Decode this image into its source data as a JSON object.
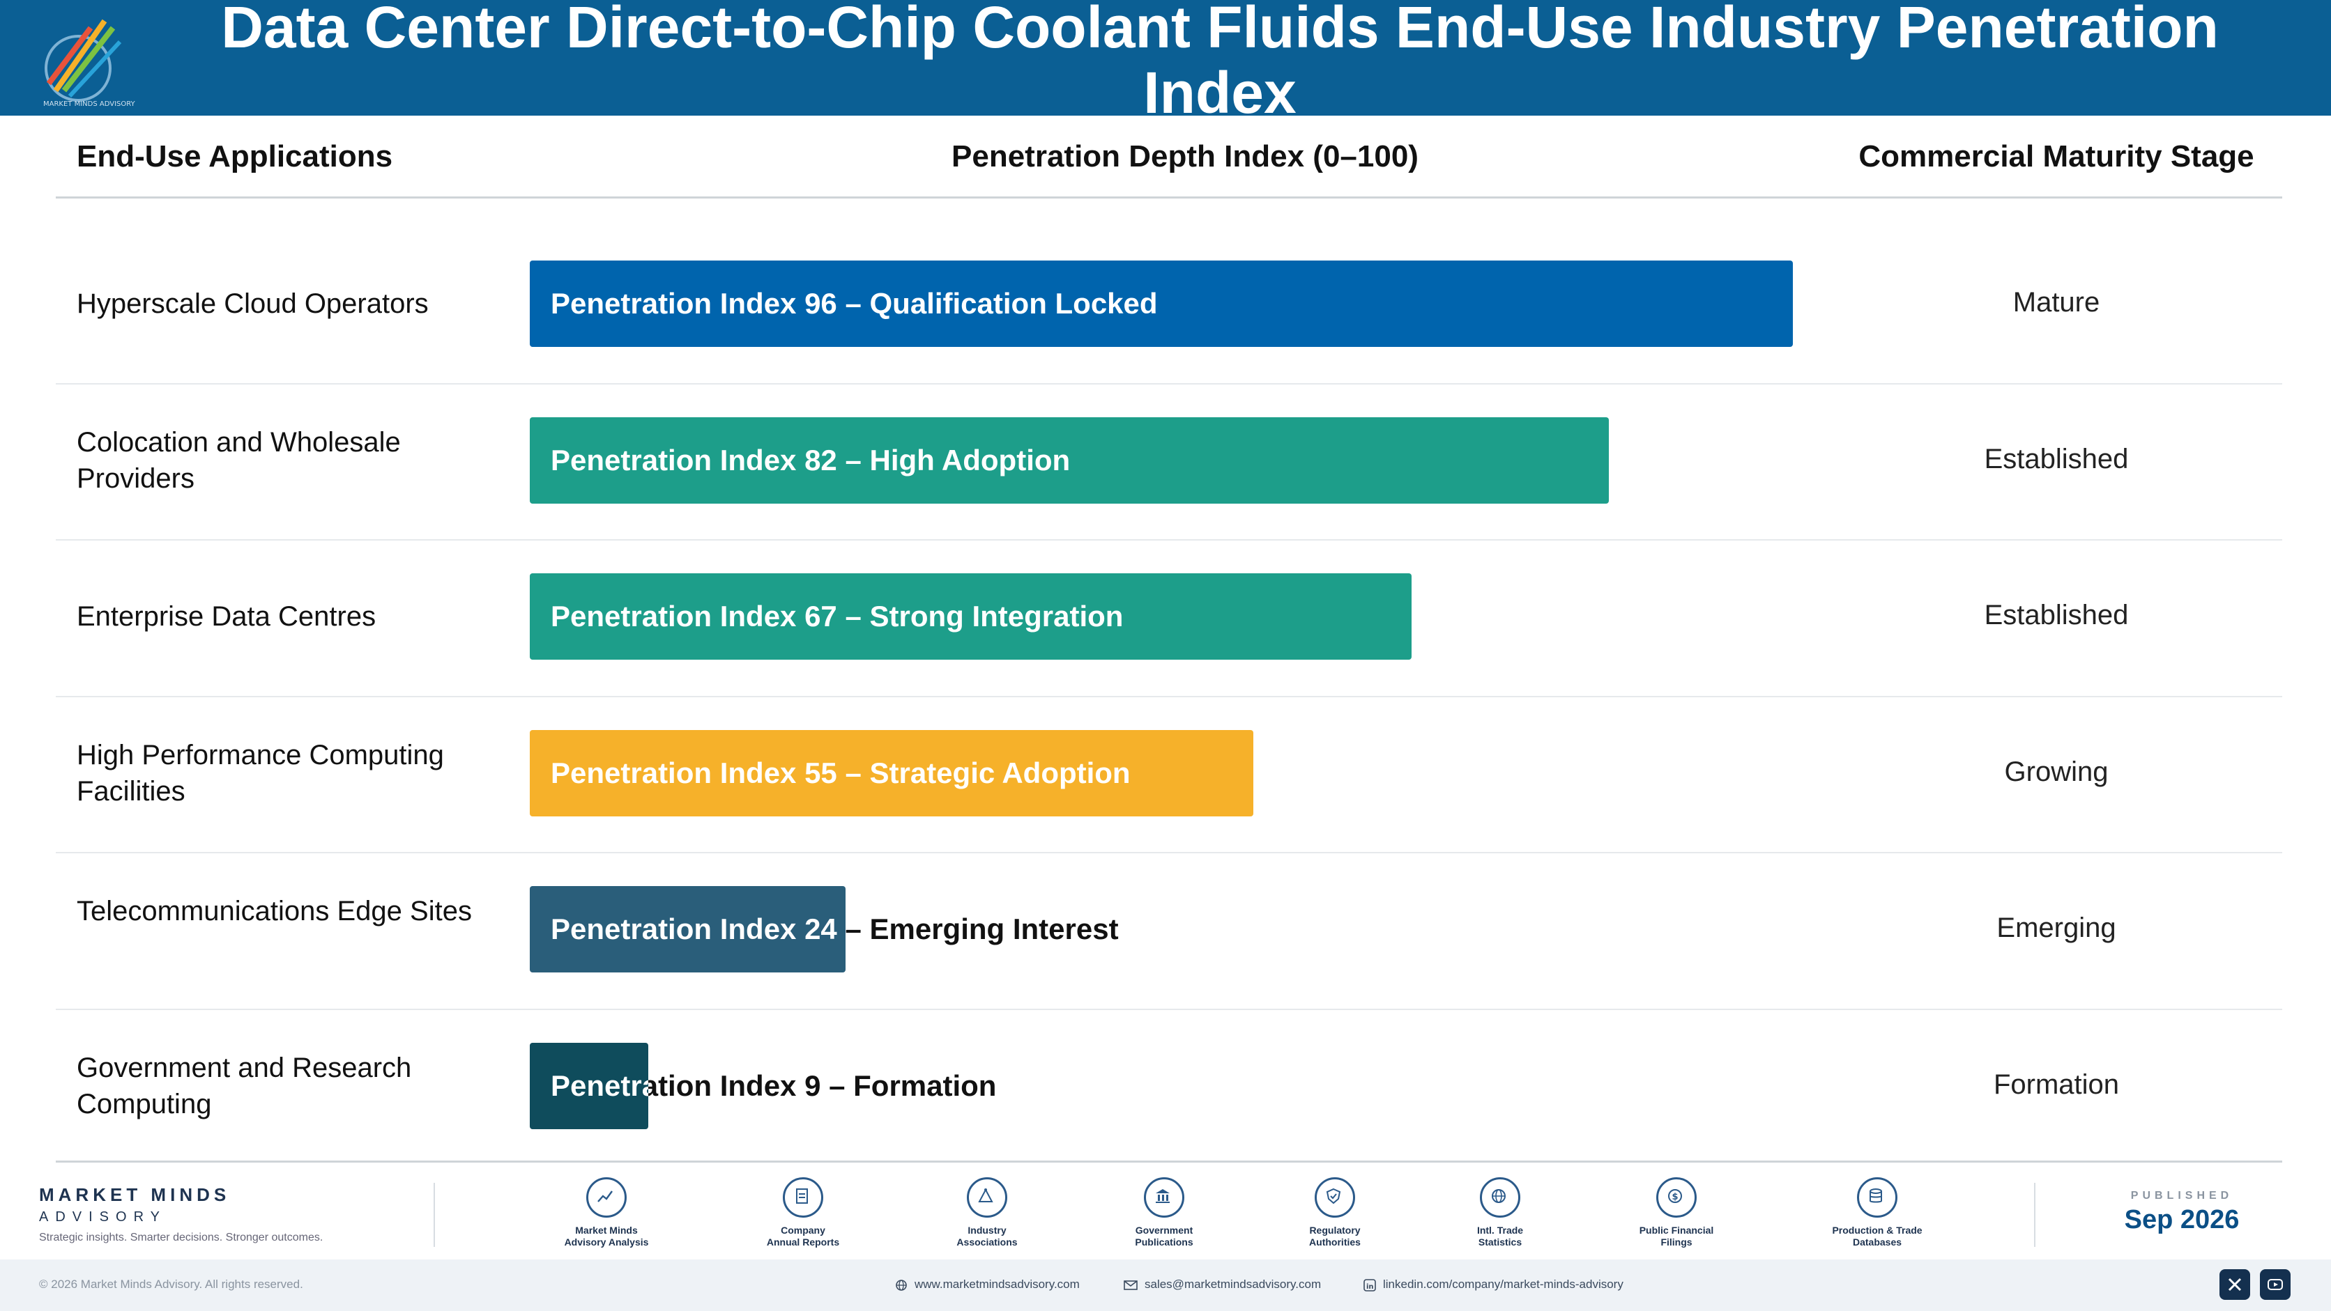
{
  "header": {
    "title": "Data Center Direct-to-Chip Coolant Fluids End-Use Industry Penetration Index"
  },
  "columns": {
    "applications": "End-Use Applications",
    "index": "Penetration Depth Index (0–100)",
    "stage": "Commercial Maturity Stage"
  },
  "chart_data": {
    "type": "bar",
    "orientation": "horizontal",
    "title": "Data Center Direct-to-Chip Coolant Fluids End-Use Industry Penetration Index",
    "xlabel": "Penetration Depth Index (0–100)",
    "xlim": [
      0,
      100
    ],
    "categories": [
      "Hyperscale Cloud Operators",
      "Colocation and Wholesale Providers",
      "Enterprise Data Centres",
      "High Performance Computing Facilities",
      "Telecommunications Edge Sites",
      "Government and Research Computing"
    ],
    "values": [
      96,
      82,
      67,
      55,
      24,
      9
    ],
    "bar_labels": [
      "Penetration Index 96 – Qualification Locked",
      "Penetration Index 82 – High Adoption",
      "Penetration Index 67 – Strong Integration",
      "Penetration Index 55 – Strategic Adoption",
      "Penetration Index 24 – Emerging Interest",
      "Penetration Index 9 – Formation"
    ],
    "colors": [
      "#0064ad",
      "#1d9e8a",
      "#1d9e8a",
      "#f6b12a",
      "#2a5e7a",
      "#0f4c5c"
    ],
    "stages": [
      "Mature",
      "Established",
      "Established",
      "Growing",
      "Emerging",
      "Formation"
    ]
  },
  "footer": {
    "brand_name": "MARKET MINDS",
    "brand_sub": "ADVISORY",
    "tagline": "Strategic insights. Smarter decisions. Stronger outcomes.",
    "sources": [
      {
        "line1": "Market Minds",
        "line2": "Advisory Analysis",
        "icon": "chart-line-icon"
      },
      {
        "line1": "Company",
        "line2": "Annual Reports",
        "icon": "document-icon"
      },
      {
        "line1": "Industry",
        "line2": "Associations",
        "icon": "network-icon"
      },
      {
        "line1": "Government",
        "line2": "Publications",
        "icon": "building-icon"
      },
      {
        "line1": "Regulatory",
        "line2": "Authorities",
        "icon": "shield-icon"
      },
      {
        "line1": "Intl. Trade",
        "line2": "Statistics",
        "icon": "globe-icon"
      },
      {
        "line1": "Public Financial",
        "line2": "Filings",
        "icon": "dollar-icon"
      },
      {
        "line1": "Production & Trade",
        "line2": "Databases",
        "icon": "database-icon"
      }
    ],
    "published_label": "PUBLISHED",
    "published_date": "Sep 2026",
    "copyright": "© 2026 Market Minds Advisory. All rights reserved.",
    "website": "www.marketmindsadvisory.com",
    "email": "sales@marketmindsadvisory.com",
    "linkedin": "linkedin.com/company/market-minds-advisory"
  }
}
